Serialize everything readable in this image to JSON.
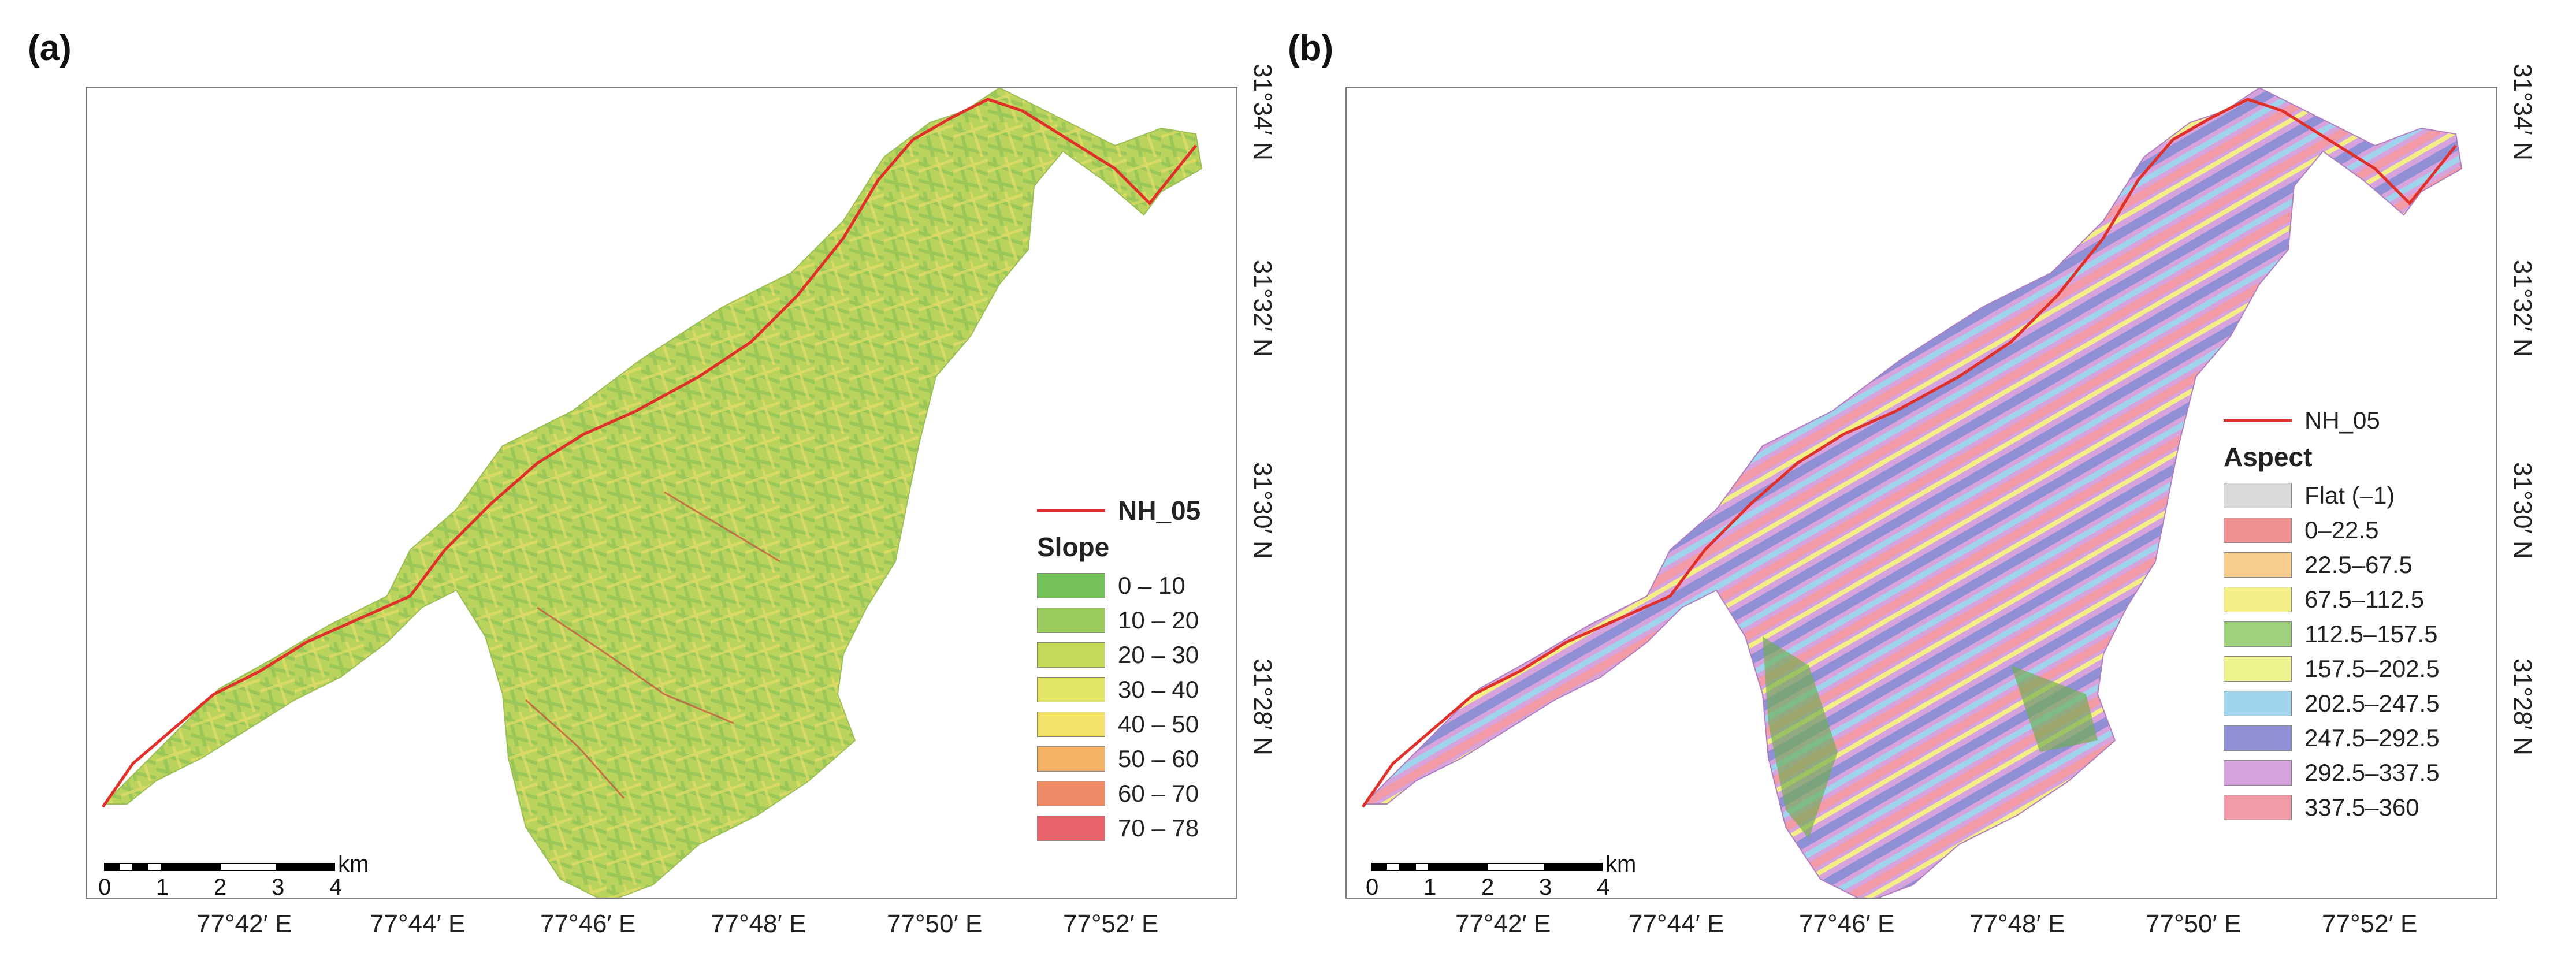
{
  "panels": {
    "a": {
      "label": "(a)",
      "legend": {
        "road": "NH_05",
        "title": "Slope",
        "classes": [
          {
            "label": "0 – 10",
            "color": "#74c15a"
          },
          {
            "label": "10 – 20",
            "color": "#9acb5c"
          },
          {
            "label": "20 – 30",
            "color": "#c3d95a"
          },
          {
            "label": "30 – 40",
            "color": "#e3e566"
          },
          {
            "label": "40 – 50",
            "color": "#f4e26a"
          },
          {
            "label": "50 – 60",
            "color": "#f4b266"
          },
          {
            "label": "60 – 70",
            "color": "#ee8a66"
          },
          {
            "label": "70 – 78",
            "color": "#e8646a"
          }
        ]
      }
    },
    "b": {
      "label": "(b)",
      "legend": {
        "road": "NH_05",
        "title": "Aspect",
        "classes": [
          {
            "label": "Flat (–1)",
            "color": "#d9d9d9"
          },
          {
            "label": "0–22.5",
            "color": "#f08f8f"
          },
          {
            "label": "22.5–67.5",
            "color": "#f8cf8f"
          },
          {
            "label": "67.5–112.5",
            "color": "#f3ee86"
          },
          {
            "label": "112.5–157.5",
            "color": "#9fd07c"
          },
          {
            "label": "157.5–202.5",
            "color": "#eef28f"
          },
          {
            "label": "202.5–247.5",
            "color": "#9fd3ee"
          },
          {
            "label": "247.5–292.5",
            "color": "#8f8fd6"
          },
          {
            "label": "292.5–337.5",
            "color": "#d6a3dc"
          },
          {
            "label": "337.5–360",
            "color": "#f29aa6"
          }
        ]
      }
    }
  },
  "x_ticks": [
    "77°42′ E",
    "77°44′ E",
    "77°46′ E",
    "77°48′ E",
    "77°50′ E",
    "77°52′ E"
  ],
  "y_ticks": [
    "31°34′ N",
    "31°32′ N",
    "31°30′ N",
    "31°28′ N"
  ],
  "scale": {
    "labels": [
      "0",
      "1",
      "2",
      "3",
      "4"
    ],
    "unit": "km"
  },
  "colors": {
    "road": "#e0302a",
    "frame": "#7a7a7a"
  }
}
